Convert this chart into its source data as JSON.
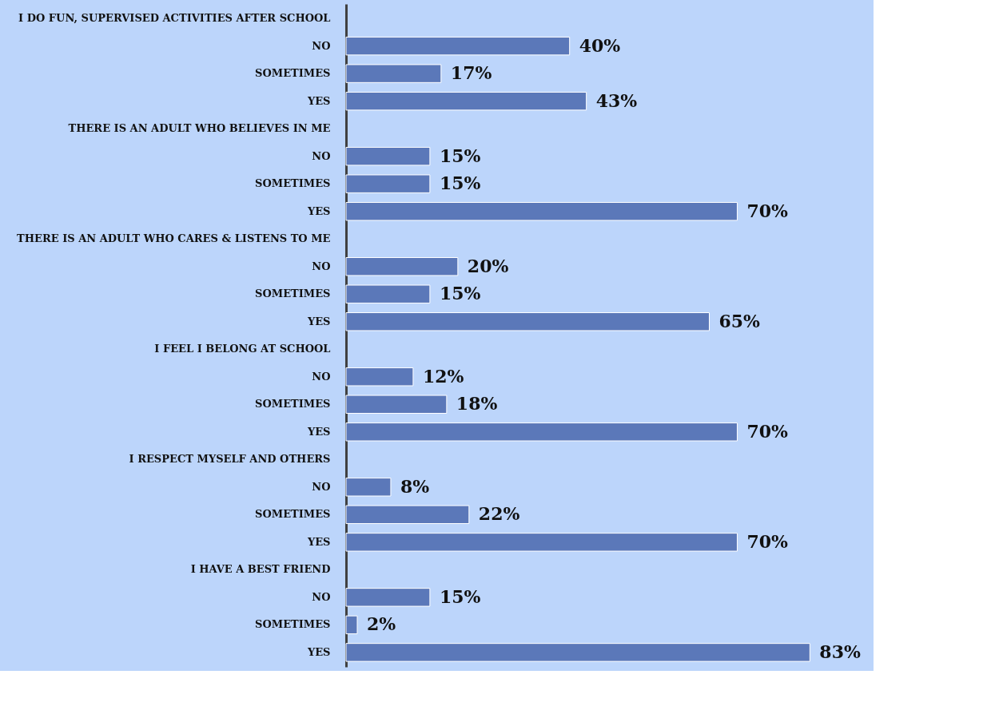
{
  "chart_data": {
    "type": "bar",
    "orientation": "horizontal",
    "color": "#5b78b9",
    "categories": [
      "I DO FUN, SUPERVISED ACTIVITIES AFTER SCHOOL",
      "NO",
      "SOMETIMES",
      "YES",
      "THERE IS AN ADULT WHO BELIEVES IN ME",
      "NO",
      "SOMETIMES",
      "YES",
      "THERE IS AN ADULT WHO CARES & LISTENS TO ME",
      "NO",
      "SOMETIMES",
      "YES",
      "I FEEL I BELONG AT SCHOOL",
      "NO",
      "SOMETIMES",
      "YES",
      "I RESPECT MYSELF AND OTHERS",
      "NO",
      "SOMETIMES",
      "YES",
      "I HAVE A BEST FRIEND",
      "NO",
      "SOMETIMES",
      "YES"
    ],
    "values": [
      null,
      40,
      17,
      43,
      null,
      15,
      15,
      70,
      null,
      20,
      15,
      65,
      null,
      12,
      18,
      70,
      null,
      8,
      22,
      70,
      null,
      15,
      2,
      83
    ],
    "value_labels": [
      null,
      "40%",
      "17%",
      "43%",
      null,
      "15%",
      "15%",
      "70%",
      null,
      "20%",
      "15%",
      "65%",
      null,
      "12%",
      "18%",
      "70%",
      null,
      "8%",
      "22%",
      "70%",
      null,
      "15%",
      "2%",
      "83%"
    ],
    "grid": false
  }
}
